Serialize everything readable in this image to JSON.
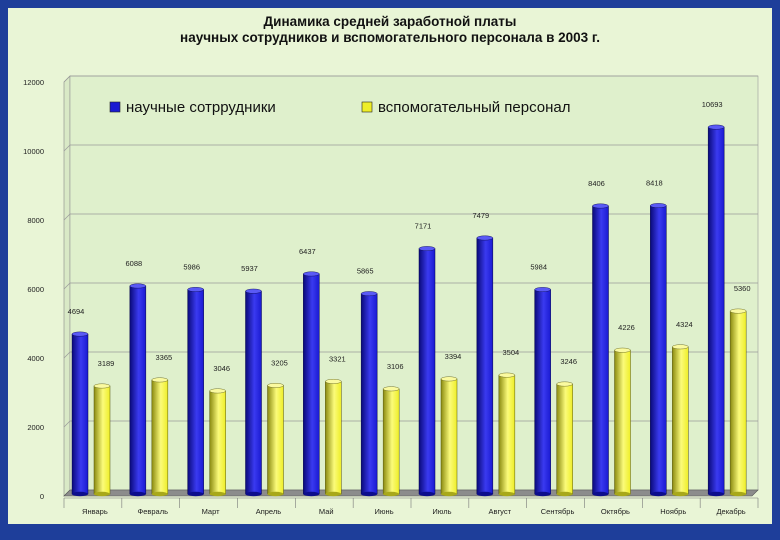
{
  "chart_data": {
    "type": "bar",
    "title_lines": [
      "Динамика средней заработной платы",
      "научных сотрудников и вспомогательного персонала в 2003 г."
    ],
    "categories": [
      "Январь",
      "Февраль",
      "Март",
      "Апрель",
      "Май",
      "Июнь",
      "Июль",
      "Август",
      "Сентябрь",
      "Октябрь",
      "Ноябрь",
      "Декабрь"
    ],
    "series": [
      {
        "name": "научные сотррудники",
        "color": "#1a1ad2",
        "values": [
          4694,
          6088,
          5986,
          5937,
          6437,
          5865,
          7171,
          7479,
          5984,
          8406,
          8418,
          10693
        ],
        "labels": [
          "4694",
          "6088",
          "5986",
          "5937",
          "6437",
          "5865",
          "7171",
          "7479",
          "5984",
          "8406",
          "8418",
          "10693"
        ]
      },
      {
        "name": "вспомогательный персонал",
        "color": "#eeee28",
        "values": [
          3189,
          3365,
          3046,
          3205,
          3321,
          3106,
          3394,
          3504,
          3246,
          4226,
          4324,
          5360
        ],
        "labels": [
          "3189",
          "3365",
          "3046",
          "3205",
          "3321",
          "3106",
          "3394",
          "3504",
          "3246",
          "4226",
          "4324",
          "5360"
        ]
      }
    ],
    "y_ticks": [
      "0",
      "2000",
      "4000",
      "6000",
      "8000",
      "10000",
      "12000"
    ],
    "ylim": [
      0,
      12000
    ],
    "grid": true,
    "legend": "top"
  }
}
